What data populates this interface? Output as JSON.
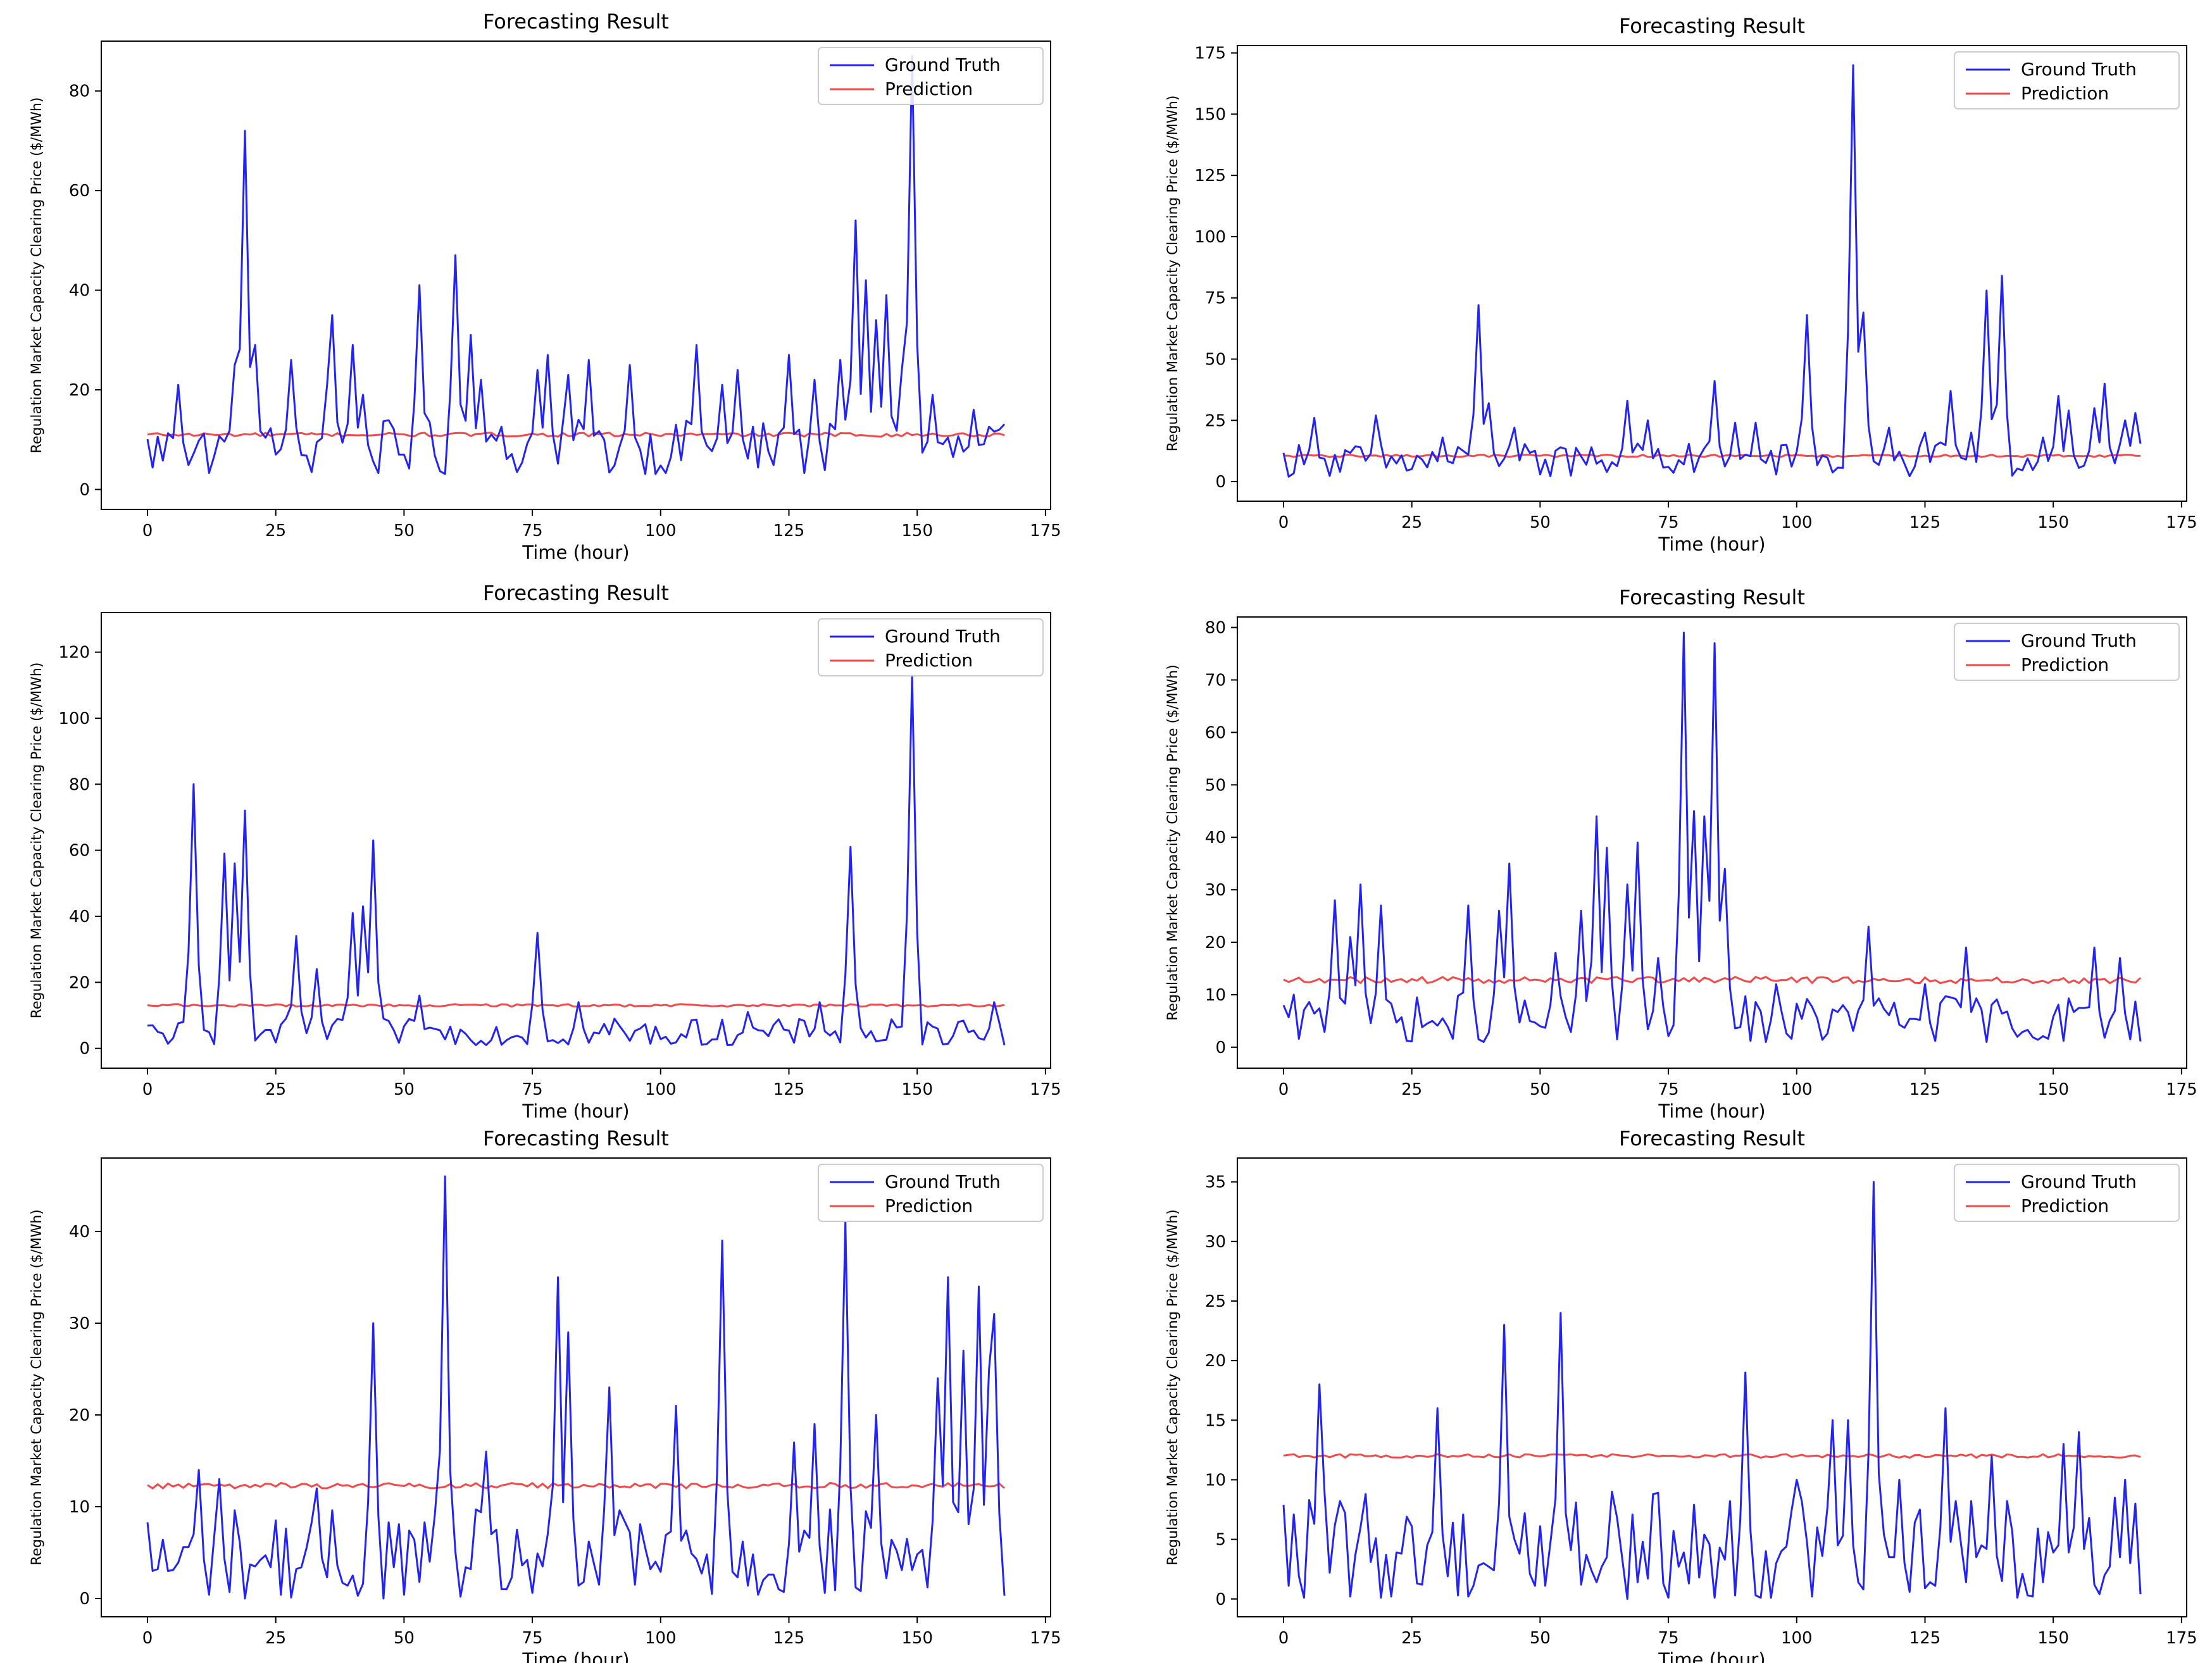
{
  "colors": {
    "ground_truth": "#2424f2",
    "prediction": "#f24a4a",
    "axis": "#000000",
    "legend_border": "#cccccc"
  },
  "chart_data": [
    {
      "type": "line",
      "title": "Forecasting Result",
      "xlabel": "Time (hour)",
      "ylabel": "Regulation Market Capacity Clearing Price ($/MWh)",
      "xlim": [
        -9,
        176
      ],
      "ylim": [
        -4,
        90
      ],
      "xticks": [
        0,
        25,
        50,
        75,
        100,
        125,
        150,
        175
      ],
      "yticks": [
        0,
        20,
        40,
        60,
        80
      ],
      "legend": "top-right",
      "series": [
        {
          "name": "Ground Truth",
          "spikes": [
            [
              6,
              21
            ],
            [
              17,
              25
            ],
            [
              19,
              72
            ],
            [
              21,
              29
            ],
            [
              28,
              26
            ],
            [
              35,
              21
            ],
            [
              36,
              35
            ],
            [
              40,
              29
            ],
            [
              42,
              19
            ],
            [
              53,
              41
            ],
            [
              60,
              47
            ],
            [
              63,
              31
            ],
            [
              65,
              22
            ],
            [
              76,
              24
            ],
            [
              78,
              27
            ],
            [
              82,
              23
            ],
            [
              86,
              26
            ],
            [
              94,
              25
            ],
            [
              107,
              29
            ],
            [
              112,
              21
            ],
            [
              115,
              24
            ],
            [
              125,
              27
            ],
            [
              130,
              22
            ],
            [
              135,
              26
            ],
            [
              138,
              54
            ],
            [
              140,
              42
            ],
            [
              142,
              34
            ],
            [
              144,
              39
            ],
            [
              147,
              24
            ],
            [
              149,
              87
            ],
            [
              153,
              19
            ],
            [
              161,
              16
            ]
          ],
          "baseline": [
            3,
            14
          ]
        },
        {
          "name": "Prediction",
          "level": 11.0,
          "jitter": 0.4
        }
      ]
    },
    {
      "type": "line",
      "title": "Forecasting Result",
      "xlabel": "Time (hour)",
      "ylabel": "Regulation Market Capacity Clearing Price ($/MWh)",
      "xlim": [
        -9,
        176
      ],
      "ylim": [
        -8,
        178
      ],
      "xticks": [
        0,
        25,
        50,
        75,
        100,
        125,
        150,
        175
      ],
      "yticks": [
        0,
        25,
        50,
        75,
        100,
        125,
        150,
        175
      ],
      "legend": "top-right",
      "series": [
        {
          "name": "Ground Truth",
          "spikes": [
            [
              6,
              26
            ],
            [
              18,
              27
            ],
            [
              31,
              18
            ],
            [
              38,
              72
            ],
            [
              40,
              32
            ],
            [
              45,
              22
            ],
            [
              54,
              14
            ],
            [
              60,
              14
            ],
            [
              67,
              33
            ],
            [
              71,
              25
            ],
            [
              84,
              41
            ],
            [
              88,
              24
            ],
            [
              92,
              24
            ],
            [
              102,
              68
            ],
            [
              111,
              170
            ],
            [
              113,
              69
            ],
            [
              118,
              22
            ],
            [
              125,
              20
            ],
            [
              130,
              37
            ],
            [
              134,
              20
            ],
            [
              137,
              78
            ],
            [
              140,
              84
            ],
            [
              148,
              18
            ],
            [
              151,
              35
            ],
            [
              153,
              29
            ],
            [
              158,
              30
            ],
            [
              160,
              40
            ],
            [
              164,
              25
            ],
            [
              166,
              28
            ]
          ],
          "baseline": [
            2,
            16
          ]
        },
        {
          "name": "Prediction",
          "level": 10.5,
          "jitter": 0.5
        }
      ]
    },
    {
      "type": "line",
      "title": "Forecasting Result",
      "xlabel": "Time (hour)",
      "ylabel": "Regulation Market Capacity Clearing Price ($/MWh)",
      "xlim": [
        -9,
        176
      ],
      "ylim": [
        -6,
        132
      ],
      "xticks": [
        0,
        25,
        50,
        75,
        100,
        125,
        150,
        175
      ],
      "yticks": [
        0,
        20,
        40,
        60,
        80,
        100,
        120
      ],
      "legend": "top-right",
      "series": [
        {
          "name": "Ground Truth",
          "spikes": [
            [
              9,
              80
            ],
            [
              15,
              59
            ],
            [
              17,
              56
            ],
            [
              19,
              72
            ],
            [
              29,
              34
            ],
            [
              33,
              24
            ],
            [
              40,
              41
            ],
            [
              42,
              43
            ],
            [
              44,
              63
            ],
            [
              53,
              16
            ],
            [
              76,
              35
            ],
            [
              84,
              14
            ],
            [
              91,
              9
            ],
            [
              117,
              11
            ],
            [
              131,
              14
            ],
            [
              137,
              61
            ],
            [
              149,
              113
            ],
            [
              158,
              8
            ],
            [
              165,
              14
            ]
          ],
          "baseline": [
            1,
            9
          ]
        },
        {
          "name": "Prediction",
          "level": 13.0,
          "jitter": 0.4
        }
      ]
    },
    {
      "type": "line",
      "title": "Forecasting Result",
      "xlabel": "Time (hour)",
      "ylabel": "Regulation Market Capacity Clearing Price ($/MWh)",
      "xlim": [
        -9,
        176
      ],
      "ylim": [
        -4,
        82
      ],
      "xticks": [
        0,
        25,
        50,
        75,
        100,
        125,
        150,
        175
      ],
      "yticks": [
        0,
        10,
        20,
        30,
        40,
        50,
        60,
        70,
        80
      ],
      "legend": "top-right",
      "series": [
        {
          "name": "Ground Truth",
          "spikes": [
            [
              10,
              28
            ],
            [
              13,
              21
            ],
            [
              15,
              31
            ],
            [
              19,
              27
            ],
            [
              36,
              27
            ],
            [
              42,
              26
            ],
            [
              44,
              35
            ],
            [
              53,
              18
            ],
            [
              58,
              26
            ],
            [
              61,
              44
            ],
            [
              63,
              38
            ],
            [
              67,
              31
            ],
            [
              69,
              39
            ],
            [
              73,
              17
            ],
            [
              78,
              79
            ],
            [
              80,
              45
            ],
            [
              82,
              44
            ],
            [
              84,
              77
            ],
            [
              86,
              34
            ],
            [
              96,
              12
            ],
            [
              114,
              23
            ],
            [
              125,
              12
            ],
            [
              133,
              19
            ],
            [
              158,
              19
            ],
            [
              163,
              17
            ]
          ],
          "baseline": [
            1,
            10
          ]
        },
        {
          "name": "Prediction",
          "level": 12.8,
          "jitter": 0.6
        }
      ]
    },
    {
      "type": "line",
      "title": "Forecasting Result",
      "xlabel": "Time (hour)",
      "ylabel": "Regulation Market Capacity Clearing Price ($/MWh)",
      "xlim": [
        -9,
        176
      ],
      "ylim": [
        -2,
        48
      ],
      "xticks": [
        0,
        25,
        50,
        75,
        100,
        125,
        150,
        175
      ],
      "yticks": [
        0,
        10,
        20,
        30,
        40
      ],
      "legend": "top-right",
      "series": [
        {
          "name": "Ground Truth",
          "spikes": [
            [
              10,
              14
            ],
            [
              14,
              13
            ],
            [
              33,
              12
            ],
            [
              44,
              30
            ],
            [
              58,
              46
            ],
            [
              66,
              16
            ],
            [
              80,
              35
            ],
            [
              82,
              29
            ],
            [
              90,
              23
            ],
            [
              103,
              21
            ],
            [
              112,
              39
            ],
            [
              126,
              17
            ],
            [
              130,
              19
            ],
            [
              136,
              41
            ],
            [
              142,
              20
            ],
            [
              154,
              24
            ],
            [
              156,
              35
            ],
            [
              159,
              27
            ],
            [
              162,
              34
            ],
            [
              164,
              25
            ],
            [
              165,
              31
            ]
          ],
          "baseline": [
            0,
            10
          ]
        },
        {
          "name": "Prediction",
          "level": 12.3,
          "jitter": 0.3
        }
      ]
    },
    {
      "type": "line",
      "title": "Forecasting Result",
      "xlabel": "Time (hour)",
      "ylabel": "Regulation Market Capacity Clearing Price ($/MWh)",
      "xlim": [
        -9,
        176
      ],
      "ylim": [
        -1.5,
        37
      ],
      "xticks": [
        0,
        25,
        50,
        75,
        100,
        125,
        150,
        175
      ],
      "yticks": [
        0,
        5,
        10,
        15,
        20,
        25,
        30,
        35
      ],
      "legend": "top-right",
      "series": [
        {
          "name": "Ground Truth",
          "spikes": [
            [
              7,
              18
            ],
            [
              30,
              16
            ],
            [
              43,
              23
            ],
            [
              54,
              24
            ],
            [
              64,
              9
            ],
            [
              90,
              19
            ],
            [
              100,
              10
            ],
            [
              107,
              15
            ],
            [
              110,
              15
            ],
            [
              115,
              35
            ],
            [
              120,
              10
            ],
            [
              129,
              16
            ],
            [
              138,
              12
            ],
            [
              152,
              13
            ],
            [
              155,
              14
            ],
            [
              164,
              10
            ]
          ],
          "baseline": [
            0,
            9
          ]
        },
        {
          "name": "Prediction",
          "level": 12.0,
          "jitter": 0.15
        }
      ]
    }
  ]
}
